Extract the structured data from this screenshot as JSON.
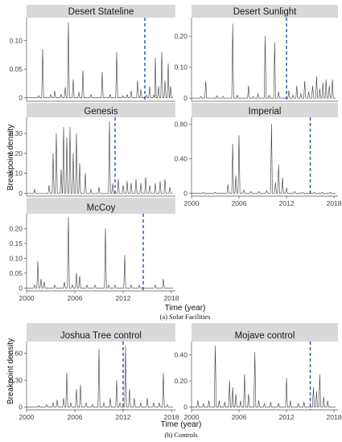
{
  "figure": {
    "y_axis_title": "Breakpoint density",
    "x_axis_title": "Time (year)",
    "caption_a": "(a) Solar Facilities",
    "caption_b": "(b) Controls",
    "colors": {
      "line": "#3a3a3a",
      "vline": "#2b4fa0",
      "strip": "#d9d9d9",
      "axis": "#555555"
    }
  },
  "chart_data": [
    {
      "type": "line",
      "title": "Desert Stateline",
      "xlim": [
        2000,
        2018.5
      ],
      "ylim": [
        -0.006,
        0.14
      ],
      "yticks": [
        0,
        0.05,
        0.1
      ],
      "ytick_labels": [
        "0",
        "0.05",
        "0.10"
      ],
      "xticks": [],
      "xtick_labels": [],
      "vline": 2014.7,
      "peaks": [
        [
          2001.5,
          0.004
        ],
        [
          2002.0,
          0.085
        ],
        [
          2003.0,
          0.006
        ],
        [
          2003.5,
          0.012
        ],
        [
          2004.3,
          0.006
        ],
        [
          2004.8,
          0.018
        ],
        [
          2005.2,
          0.132
        ],
        [
          2005.8,
          0.032
        ],
        [
          2006.5,
          0.01
        ],
        [
          2007.0,
          0.048
        ],
        [
          2008.0,
          0.006
        ],
        [
          2009.4,
          0.045
        ],
        [
          2010.4,
          0.006
        ],
        [
          2011.2,
          0.08
        ],
        [
          2012.0,
          0.004
        ],
        [
          2012.5,
          0.006
        ],
        [
          2013.0,
          0.012
        ],
        [
          2013.8,
          0.03
        ],
        [
          2014.2,
          0.015
        ],
        [
          2014.9,
          0.005
        ],
        [
          2015.3,
          0.02
        ],
        [
          2015.8,
          0.005
        ],
        [
          2016.0,
          0.07
        ],
        [
          2016.4,
          0.02
        ],
        [
          2016.8,
          0.08
        ],
        [
          2017.2,
          0.03
        ],
        [
          2017.6,
          0.06
        ],
        [
          2017.9,
          0.02
        ]
      ]
    },
    {
      "type": "line",
      "title": "Desert Sunlight",
      "xlim": [
        2000,
        2018.5
      ],
      "ylim": [
        -0.01,
        0.26
      ],
      "yticks": [
        0,
        0.1,
        0.2
      ],
      "ytick_labels": [
        "0",
        "0.10",
        "0.20"
      ],
      "xticks": [],
      "xtick_labels": [],
      "vline": 2012.0,
      "peaks": [
        [
          2001.2,
          0.005
        ],
        [
          2001.8,
          0.055
        ],
        [
          2003.2,
          0.008
        ],
        [
          2004.0,
          0.006
        ],
        [
          2005.2,
          0.24
        ],
        [
          2005.8,
          0.01
        ],
        [
          2007.2,
          0.04
        ],
        [
          2007.8,
          0.005
        ],
        [
          2008.4,
          0.015
        ],
        [
          2009.3,
          0.2
        ],
        [
          2009.8,
          0.01
        ],
        [
          2010.5,
          0.18
        ],
        [
          2011.0,
          0.02
        ],
        [
          2012.3,
          0.025
        ],
        [
          2012.8,
          0.01
        ],
        [
          2013.3,
          0.04
        ],
        [
          2013.8,
          0.015
        ],
        [
          2014.3,
          0.055
        ],
        [
          2014.8,
          0.02
        ],
        [
          2015.3,
          0.04
        ],
        [
          2015.8,
          0.07
        ],
        [
          2016.2,
          0.03
        ],
        [
          2016.6,
          0.05
        ],
        [
          2017.0,
          0.06
        ],
        [
          2017.4,
          0.04
        ],
        [
          2017.8,
          0.06
        ]
      ]
    },
    {
      "type": "line",
      "title": "Genesis",
      "xlim": [
        2000,
        2018.5
      ],
      "ylim": [
        -0.014,
        0.38
      ],
      "yticks": [
        0,
        0.1,
        0.2,
        0.3
      ],
      "ytick_labels": [
        "0",
        "0.10",
        "0.20",
        "0.30"
      ],
      "xticks": [],
      "xtick_labels": [],
      "vline": 2011.0,
      "peaks": [
        [
          2001.0,
          0.02
        ],
        [
          2002.8,
          0.04
        ],
        [
          2003.3,
          0.2
        ],
        [
          2003.7,
          0.3
        ],
        [
          2004.3,
          0.12
        ],
        [
          2004.6,
          0.33
        ],
        [
          2005.0,
          0.28
        ],
        [
          2005.4,
          0.33
        ],
        [
          2005.8,
          0.2
        ],
        [
          2006.2,
          0.3
        ],
        [
          2006.6,
          0.15
        ],
        [
          2007.3,
          0.1
        ],
        [
          2008.0,
          0.02
        ],
        [
          2009.0,
          0.03
        ],
        [
          2010.3,
          0.36
        ],
        [
          2010.7,
          0.05
        ],
        [
          2011.4,
          0.07
        ],
        [
          2012.0,
          0.04
        ],
        [
          2012.5,
          0.06
        ],
        [
          2013.0,
          0.05
        ],
        [
          2013.6,
          0.07
        ],
        [
          2014.2,
          0.05
        ],
        [
          2014.8,
          0.08
        ],
        [
          2015.3,
          0.04
        ],
        [
          2016.0,
          0.05
        ],
        [
          2016.6,
          0.06
        ],
        [
          2017.2,
          0.07
        ],
        [
          2017.8,
          0.03
        ]
      ]
    },
    {
      "type": "line",
      "title": "Imperial",
      "xlim": [
        2000,
        2018.5
      ],
      "ylim": [
        -0.035,
        0.88
      ],
      "yticks": [
        0,
        0.4,
        0.8
      ],
      "ytick_labels": [
        "0",
        "0.40",
        "0.80"
      ],
      "xticks": [
        2000,
        2006,
        2012,
        2018
      ],
      "xtick_labels": [
        "2000",
        "2006",
        "2012",
        "2018"
      ],
      "vline": 2015.0,
      "peaks": [
        [
          2001.5,
          0.01
        ],
        [
          2003.0,
          0.01
        ],
        [
          2004.6,
          0.1
        ],
        [
          2005.2,
          0.57
        ],
        [
          2005.6,
          0.2
        ],
        [
          2006.0,
          0.67
        ],
        [
          2006.6,
          0.04
        ],
        [
          2007.5,
          0.02
        ],
        [
          2008.5,
          0.02
        ],
        [
          2009.5,
          0.03
        ],
        [
          2010.1,
          0.8
        ],
        [
          2010.6,
          0.12
        ],
        [
          2011.0,
          0.33
        ],
        [
          2011.5,
          0.18
        ],
        [
          2012.0,
          0.06
        ],
        [
          2013.0,
          0.02
        ],
        [
          2014.0,
          0.01
        ],
        [
          2015.5,
          0.01
        ],
        [
          2016.5,
          0.01
        ],
        [
          2017.5,
          0.01
        ]
      ]
    },
    {
      "type": "line",
      "title": "McCoy",
      "xlim": [
        2000,
        2018.5
      ],
      "ylim": [
        -0.01,
        0.25
      ],
      "yticks": [
        0,
        0.05,
        0.1,
        0.15,
        0.2
      ],
      "ytick_labels": [
        "0",
        "0.05",
        "0.10",
        "0.15",
        "0.20"
      ],
      "xticks": [
        2000,
        2006,
        2012,
        2018
      ],
      "xtick_labels": [
        "2000",
        "2006",
        "2012",
        "2018"
      ],
      "vline": 2014.5,
      "peaks": [
        [
          2001.0,
          0.01
        ],
        [
          2001.4,
          0.09
        ],
        [
          2001.8,
          0.03
        ],
        [
          2002.2,
          0.02
        ],
        [
          2003.5,
          0.01
        ],
        [
          2004.7,
          0.02
        ],
        [
          2005.2,
          0.24
        ],
        [
          2005.7,
          0.01
        ],
        [
          2006.2,
          0.05
        ],
        [
          2006.6,
          0.04
        ],
        [
          2007.5,
          0.01
        ],
        [
          2008.5,
          0.01
        ],
        [
          2009.8,
          0.2
        ],
        [
          2010.2,
          0.01
        ],
        [
          2011.0,
          0.01
        ],
        [
          2012.2,
          0.11
        ],
        [
          2013.0,
          0.01
        ],
        [
          2014.0,
          0.01
        ],
        [
          2016.0,
          0.01
        ],
        [
          2017.0,
          0.03
        ]
      ]
    },
    {
      "type": "line",
      "title": "Joshua Tree control",
      "xlim": [
        2000,
        2018.5
      ],
      "ylim": [
        -0.03,
        0.73
      ],
      "yticks": [
        0,
        0.3,
        0.6
      ],
      "ytick_labels": [
        "0",
        "0.30",
        "0.60"
      ],
      "xticks": [
        2000,
        2006,
        2012,
        2018
      ],
      "xtick_labels": [
        "2000",
        "2006",
        "2012",
        "2018"
      ],
      "vline": 2012.0,
      "peaks": [
        [
          2001.5,
          0.02
        ],
        [
          2002.5,
          0.03
        ],
        [
          2003.3,
          0.05
        ],
        [
          2003.8,
          0.08
        ],
        [
          2004.6,
          0.1
        ],
        [
          2005.0,
          0.38
        ],
        [
          2005.5,
          0.05
        ],
        [
          2006.2,
          0.2
        ],
        [
          2006.7,
          0.25
        ],
        [
          2007.4,
          0.05
        ],
        [
          2008.2,
          0.03
        ],
        [
          2009.0,
          0.65
        ],
        [
          2009.6,
          0.05
        ],
        [
          2010.4,
          0.1
        ],
        [
          2011.2,
          0.3
        ],
        [
          2011.6,
          0.05
        ],
        [
          2012.3,
          0.68
        ],
        [
          2012.8,
          0.2
        ],
        [
          2013.4,
          0.1
        ],
        [
          2014.2,
          0.05
        ],
        [
          2015.0,
          0.1
        ],
        [
          2015.8,
          0.05
        ],
        [
          2016.5,
          0.05
        ],
        [
          2017.0,
          0.38
        ],
        [
          2017.5,
          0.03
        ]
      ]
    },
    {
      "type": "line",
      "title": "Mojave control",
      "xlim": [
        2000,
        2018.5
      ],
      "ylim": [
        -0.02,
        0.5
      ],
      "yticks": [
        0,
        0.2,
        0.4
      ],
      "ytick_labels": [
        "0",
        "0.20",
        "0.40"
      ],
      "xticks": [
        2000,
        2006,
        2012,
        2018
      ],
      "xtick_labels": [
        "2000",
        "2006",
        "2012",
        "2018"
      ],
      "vline": 2015.0,
      "peaks": [
        [
          2000.8,
          0.05
        ],
        [
          2001.5,
          0.03
        ],
        [
          2002.2,
          0.05
        ],
        [
          2003.0,
          0.47
        ],
        [
          2003.5,
          0.05
        ],
        [
          2004.2,
          0.04
        ],
        [
          2004.8,
          0.2
        ],
        [
          2005.2,
          0.15
        ],
        [
          2005.6,
          0.1
        ],
        [
          2006.2,
          0.05
        ],
        [
          2006.7,
          0.25
        ],
        [
          2007.2,
          0.1
        ],
        [
          2008.0,
          0.42
        ],
        [
          2008.5,
          0.05
        ],
        [
          2009.2,
          0.03
        ],
        [
          2010.0,
          0.04
        ],
        [
          2011.0,
          0.03
        ],
        [
          2012.0,
          0.22
        ],
        [
          2012.5,
          0.05
        ],
        [
          2013.5,
          0.03
        ],
        [
          2014.2,
          0.04
        ],
        [
          2015.4,
          0.15
        ],
        [
          2015.8,
          0.12
        ],
        [
          2016.2,
          0.25
        ],
        [
          2016.7,
          0.08
        ],
        [
          2017.2,
          0.05
        ]
      ]
    }
  ]
}
